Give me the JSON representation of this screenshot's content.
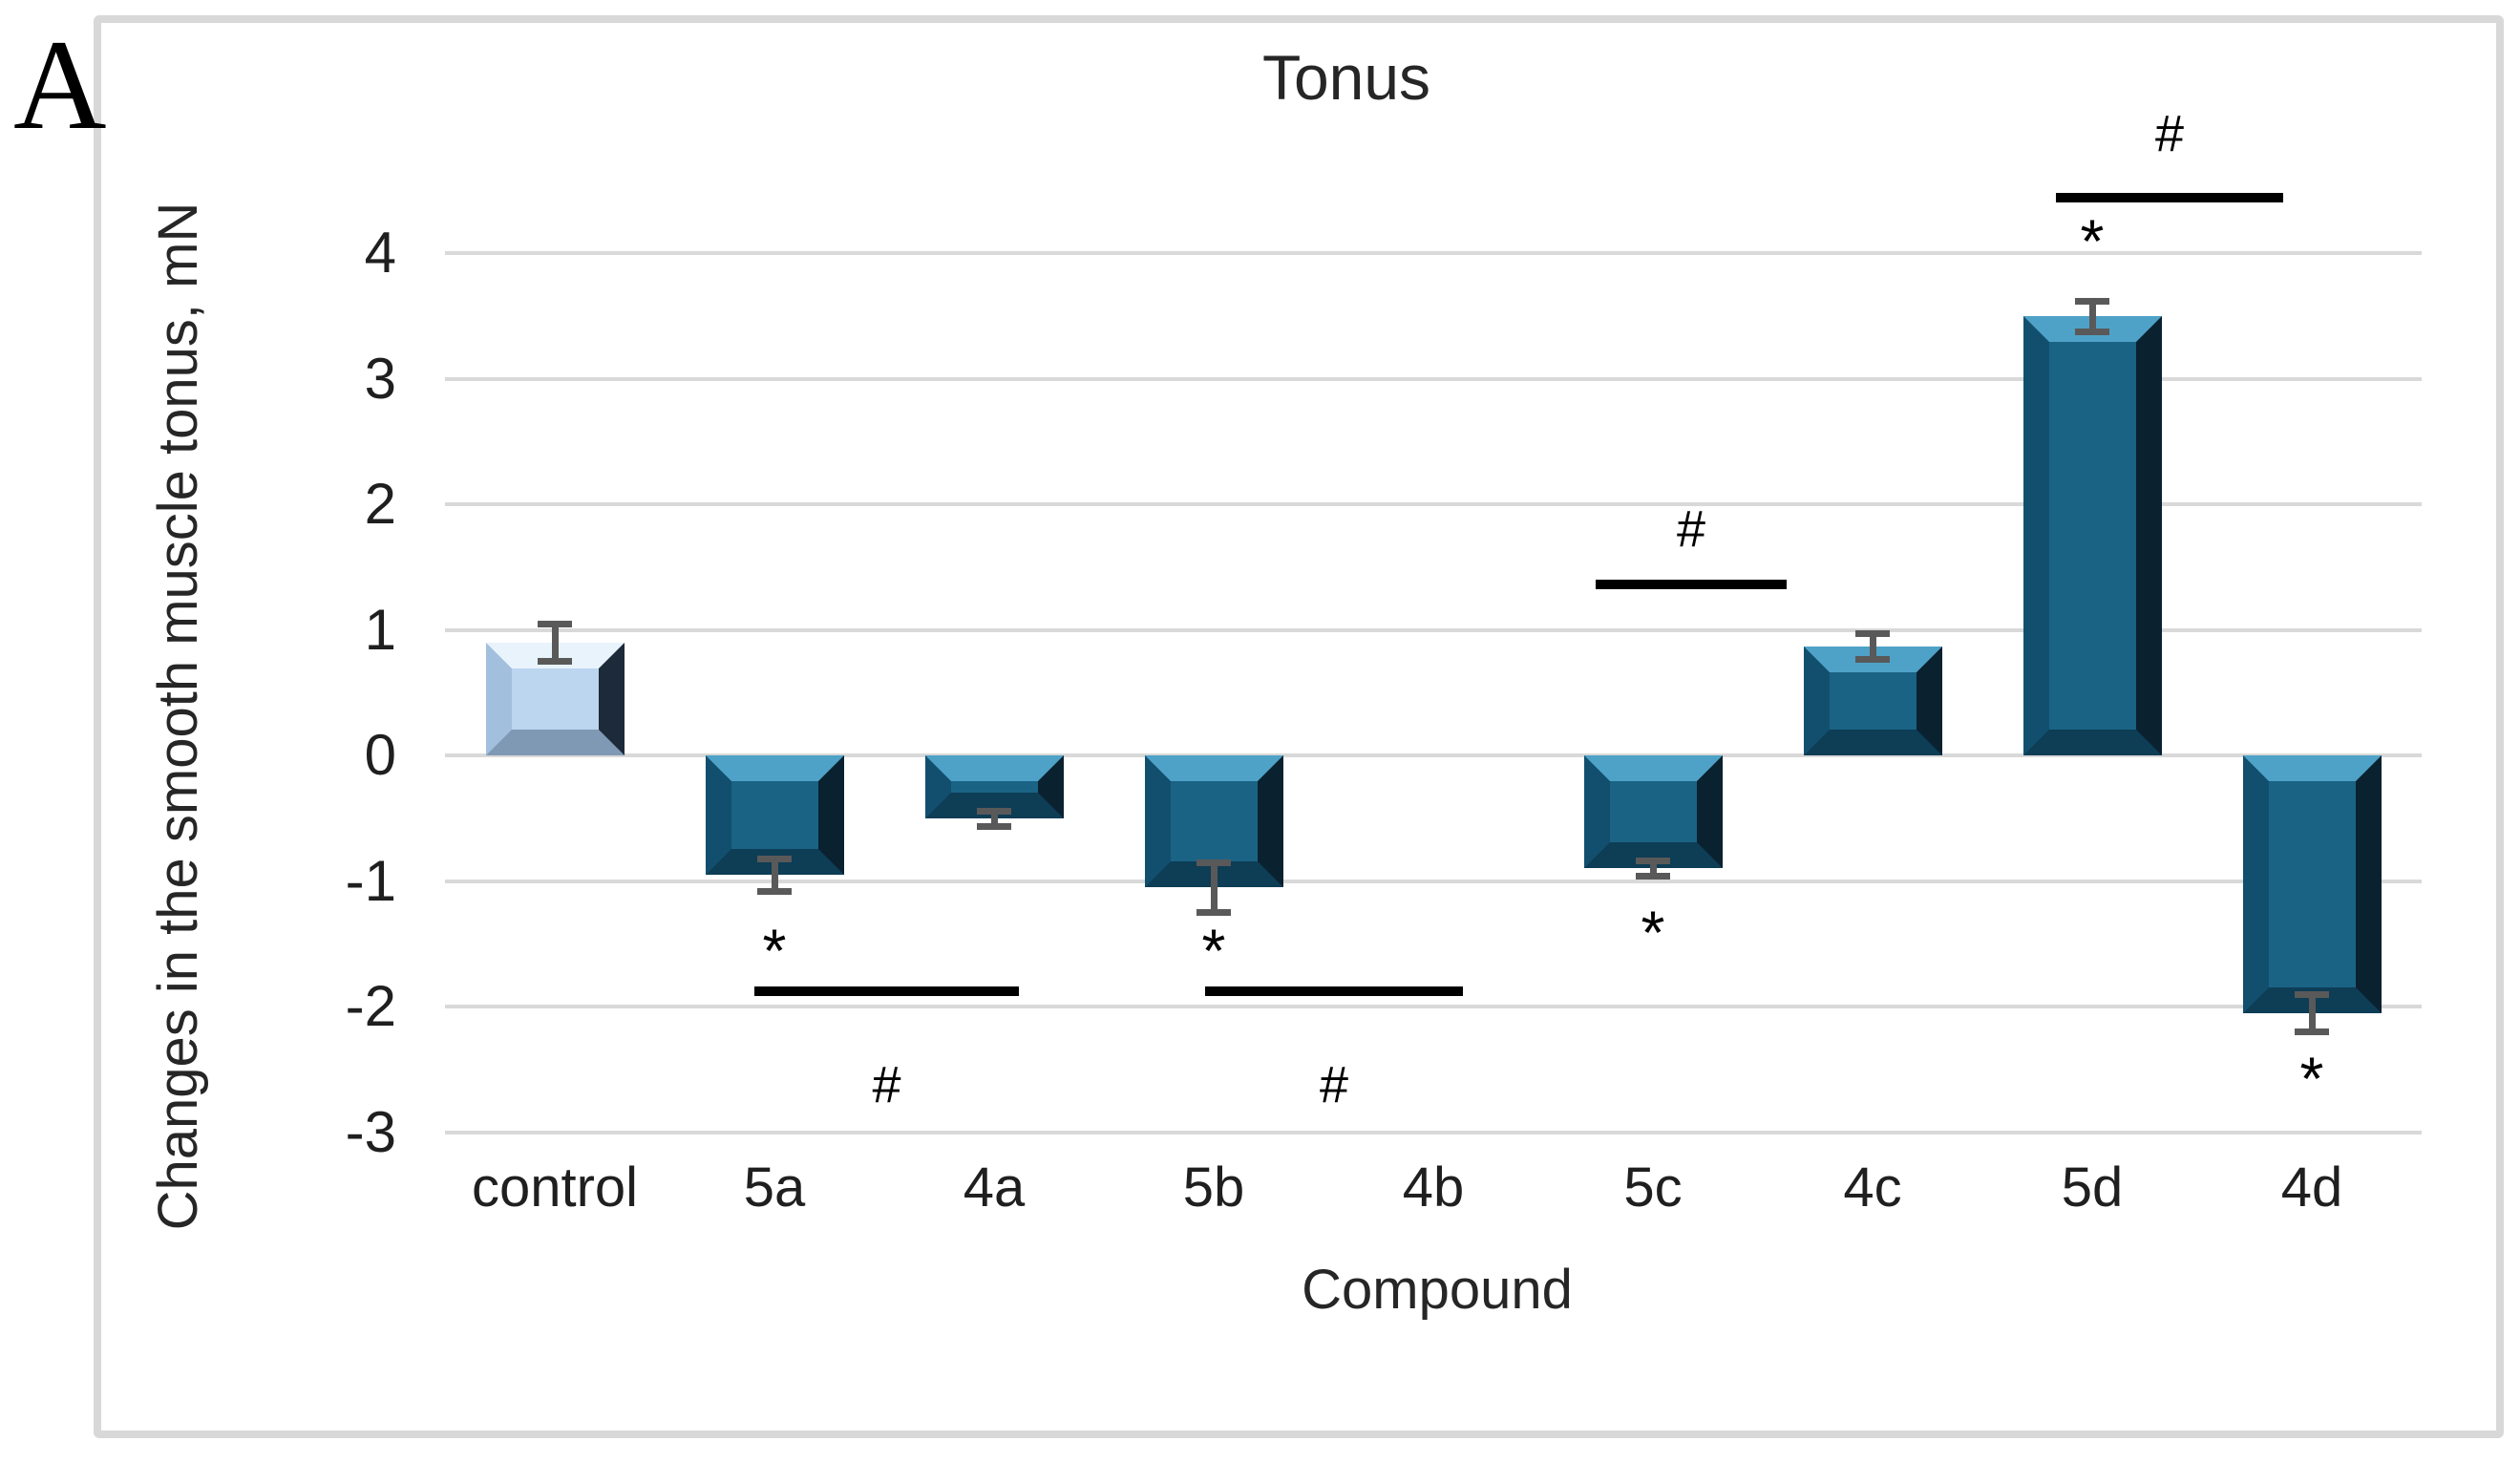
{
  "panel_label": "A",
  "colors": {
    "background": "#FFFFFF",
    "panel_border": "#D8D8D8",
    "gridline": "#D9D9D9",
    "title_text": "#262626",
    "axis_text": "#1F1F1F",
    "annotation": "#000000",
    "error_bar": "#595959",
    "bar_styles": {
      "default": {
        "body": "#1A6385",
        "top": "#4FA2C7",
        "left": "#124F6E",
        "right": "#0A2130",
        "bottom": "#0E3D56"
      },
      "control": {
        "body": "#BCD6EF",
        "top": "#E9F3FC",
        "left": "#A2C0DE",
        "right": "#1C2A39",
        "bottom": "#7F99B5"
      }
    }
  },
  "chart_data": {
    "type": "bar",
    "title": "Tonus",
    "xlabel": "Compound",
    "ylabel": "Changes in the smooth muscle tonus, mN",
    "categories": [
      "control",
      "5a",
      "4a",
      "5b",
      "4b",
      "5c",
      "4c",
      "5d",
      "4d"
    ],
    "values": [
      0.9,
      -0.95,
      -0.5,
      -1.05,
      null,
      -0.9,
      0.87,
      3.5,
      -2.05
    ],
    "errors": [
      0.15,
      0.13,
      0.06,
      0.2,
      null,
      0.06,
      0.1,
      0.12,
      0.15
    ],
    "control_category": "control",
    "yticks": [
      4,
      3,
      2,
      1,
      0,
      -1,
      -2,
      -3
    ],
    "ylim": [
      -3.5,
      4.6
    ],
    "grid": "horizontal",
    "legend": "none",
    "significance_lines": [
      {
        "from": "5a",
        "to": "4a",
        "y": -1.88,
        "symbol": "#",
        "symbol_y": -2.62,
        "placement": "below",
        "dx1": -21,
        "dx2": 26
      },
      {
        "from": "5b",
        "to": "4b",
        "y": -1.88,
        "symbol": "#",
        "symbol_y": -2.62,
        "placement": "below",
        "dx1": -9,
        "dx2": 31
      },
      {
        "from": "5c",
        "to": "4c",
        "y": 1.36,
        "symbol": "#",
        "symbol_y": 1.8,
        "placement": "above",
        "dx1": -60,
        "dx2": -90
      },
      {
        "from": "5d",
        "to": "4d",
        "y": 4.44,
        "symbol": "#",
        "symbol_y": 4.95,
        "placement": "above",
        "dx1": -38,
        "dx2": -30
      }
    ],
    "asterisks": [
      {
        "category": "5a",
        "y": -1.5,
        "symbol": "*"
      },
      {
        "category": "5b",
        "y": -1.5,
        "symbol": "*"
      },
      {
        "category": "5c",
        "y": -1.35,
        "symbol": "*"
      },
      {
        "category": "5d",
        "y": 4.15,
        "symbol": "*"
      },
      {
        "category": "4d",
        "y": -2.52,
        "symbol": "*"
      }
    ]
  }
}
